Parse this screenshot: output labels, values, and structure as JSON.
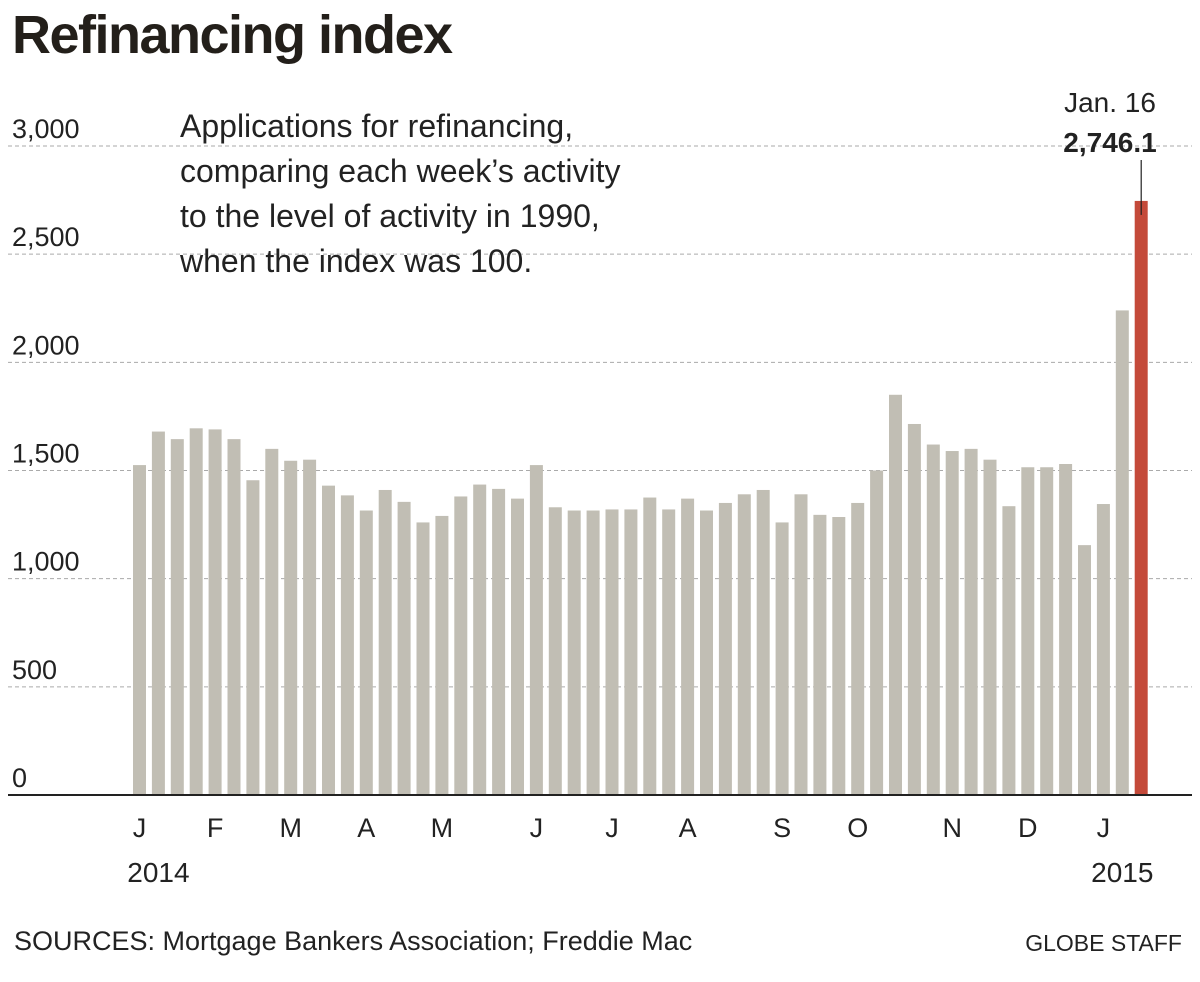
{
  "title": "Refinancing index",
  "description_lines": [
    "Applications for refinancing,",
    "comparing each week’s activity",
    "to the level of activity in 1990,",
    "when the index was 100."
  ],
  "sources": "SOURCES: Mortgage Bankers Association; Freddie Mac",
  "credit": "GLOBE STAFF",
  "colors": {
    "bar": "#c1beb4",
    "highlight": "#c44a3a",
    "grid": "#aaaaaa",
    "text": "#222222"
  },
  "chart_data": {
    "type": "bar",
    "title": "Refinancing index",
    "xlabel": "",
    "ylabel": "",
    "ylim": [
      0,
      3000
    ],
    "yticks": [
      0,
      500,
      1000,
      1500,
      2000,
      2500,
      3000
    ],
    "ytick_labels": [
      "0",
      "500",
      "1,000",
      "1,500",
      "2,000",
      "2,500",
      "3,000"
    ],
    "grid": true,
    "month_labels": [
      {
        "label": "J",
        "bar_index": 0
      },
      {
        "label": "F",
        "bar_index": 4
      },
      {
        "label": "M",
        "bar_index": 8
      },
      {
        "label": "A",
        "bar_index": 12
      },
      {
        "label": "M",
        "bar_index": 16
      },
      {
        "label": "J",
        "bar_index": 21
      },
      {
        "label": "J",
        "bar_index": 25
      },
      {
        "label": "A",
        "bar_index": 29
      },
      {
        "label": "S",
        "bar_index": 34
      },
      {
        "label": "O",
        "bar_index": 38
      },
      {
        "label": "N",
        "bar_index": 43
      },
      {
        "label": "D",
        "bar_index": 47
      },
      {
        "label": "J",
        "bar_index": 51
      }
    ],
    "year_labels": [
      {
        "label": "2014",
        "bar_index": 1
      },
      {
        "label": "2015",
        "bar_index": 52
      }
    ],
    "values": [
      1525,
      1680,
      1645,
      1695,
      1690,
      1645,
      1455,
      1600,
      1545,
      1550,
      1430,
      1385,
      1315,
      1410,
      1355,
      1260,
      1290,
      1380,
      1435,
      1415,
      1370,
      1525,
      1330,
      1315,
      1315,
      1320,
      1320,
      1375,
      1320,
      1370,
      1315,
      1350,
      1390,
      1410,
      1260,
      1390,
      1295,
      1285,
      1350,
      1500,
      1850,
      1715,
      1620,
      1590,
      1600,
      1550,
      1335,
      1515,
      1515,
      1530,
      1155,
      1345,
      2240,
      2746.1
    ],
    "highlight": {
      "index": 53,
      "label": "Jan. 16",
      "value_label": "2,746.1"
    }
  }
}
